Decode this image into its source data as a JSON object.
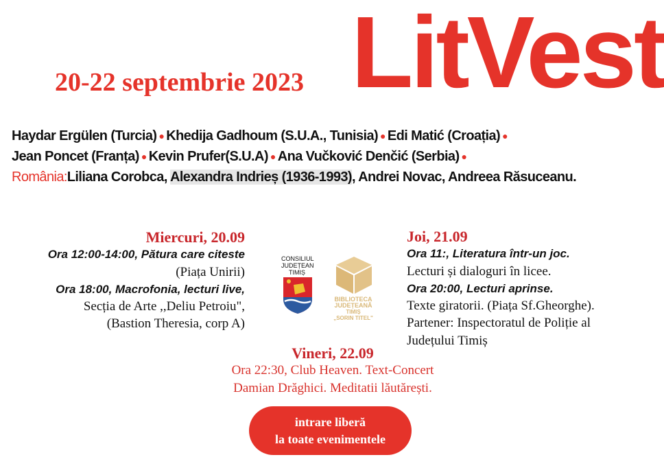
{
  "header": {
    "dates": "20-22 septembrie 2023",
    "logo": "LitVest"
  },
  "participants": {
    "line1": [
      {
        "name": "Haydar Ergülen (Turcia)"
      },
      {
        "name": "Khedija Gadhoum (S.U.A., Tunisia)"
      },
      {
        "name": "Edi Matić (Croația)"
      }
    ],
    "line2": [
      {
        "name": "Jean Poncet (Franța)"
      },
      {
        "name": "Kevin Prufer(S.U.A)"
      },
      {
        "name": "Ana Vučković Denčić (Serbia)"
      }
    ],
    "romania_label": "România:",
    "romania_a": "Liliana Corobca, ",
    "romania_highlight": "Alexandra Indrieș (1936-1993)",
    "romania_b": ", Andrei Novac, Andreea Răsuceanu.",
    "separator": "●"
  },
  "wednesday": {
    "day": "Miercuri, 20.09",
    "e1": "Ora 12:00-14:00, Pătura care citeste",
    "e1_loc": "(Piața Unirii)",
    "e2": "Ora 18:00, Macrofonia, lecturi live,",
    "e2_loc1": "Secția de Arte ,,Deliu Petroiu\",",
    "e2_loc2": "(Bastion Theresia, corp A)"
  },
  "thursday": {
    "day": "Joi, 21.09",
    "e1": "Ora 11:, Literatura într-un joc.",
    "e1_desc": "Lecturi și dialoguri în licee.",
    "e2": "Ora 20:00, Lecturi aprinse.",
    "e2_desc": "Texte giratorii. (Piața Sf.Gheorghe).",
    "partner1": "Partener: Inspectoratul de Poliție al",
    "partner2": "Județului Timiș"
  },
  "friday": {
    "day": "Vineri, 22.09",
    "l1": "Ora 22:30, Club Heaven. Text-Concert",
    "l2": "Damian Drăghici. Meditatii lăutărești."
  },
  "logos": {
    "cjt": [
      "CONSILIUL",
      "JUDEȚEAN",
      "TIMIȘ"
    ],
    "bjt": [
      "BIBLIOTECA",
      "JUDEȚEANĂ",
      "TIMIȘ",
      "„SORIN TITEL\""
    ]
  },
  "cta": {
    "l1": "intrare liberă",
    "l2": "la toate evenimentele"
  },
  "colors": {
    "accent": "#e5332a"
  }
}
